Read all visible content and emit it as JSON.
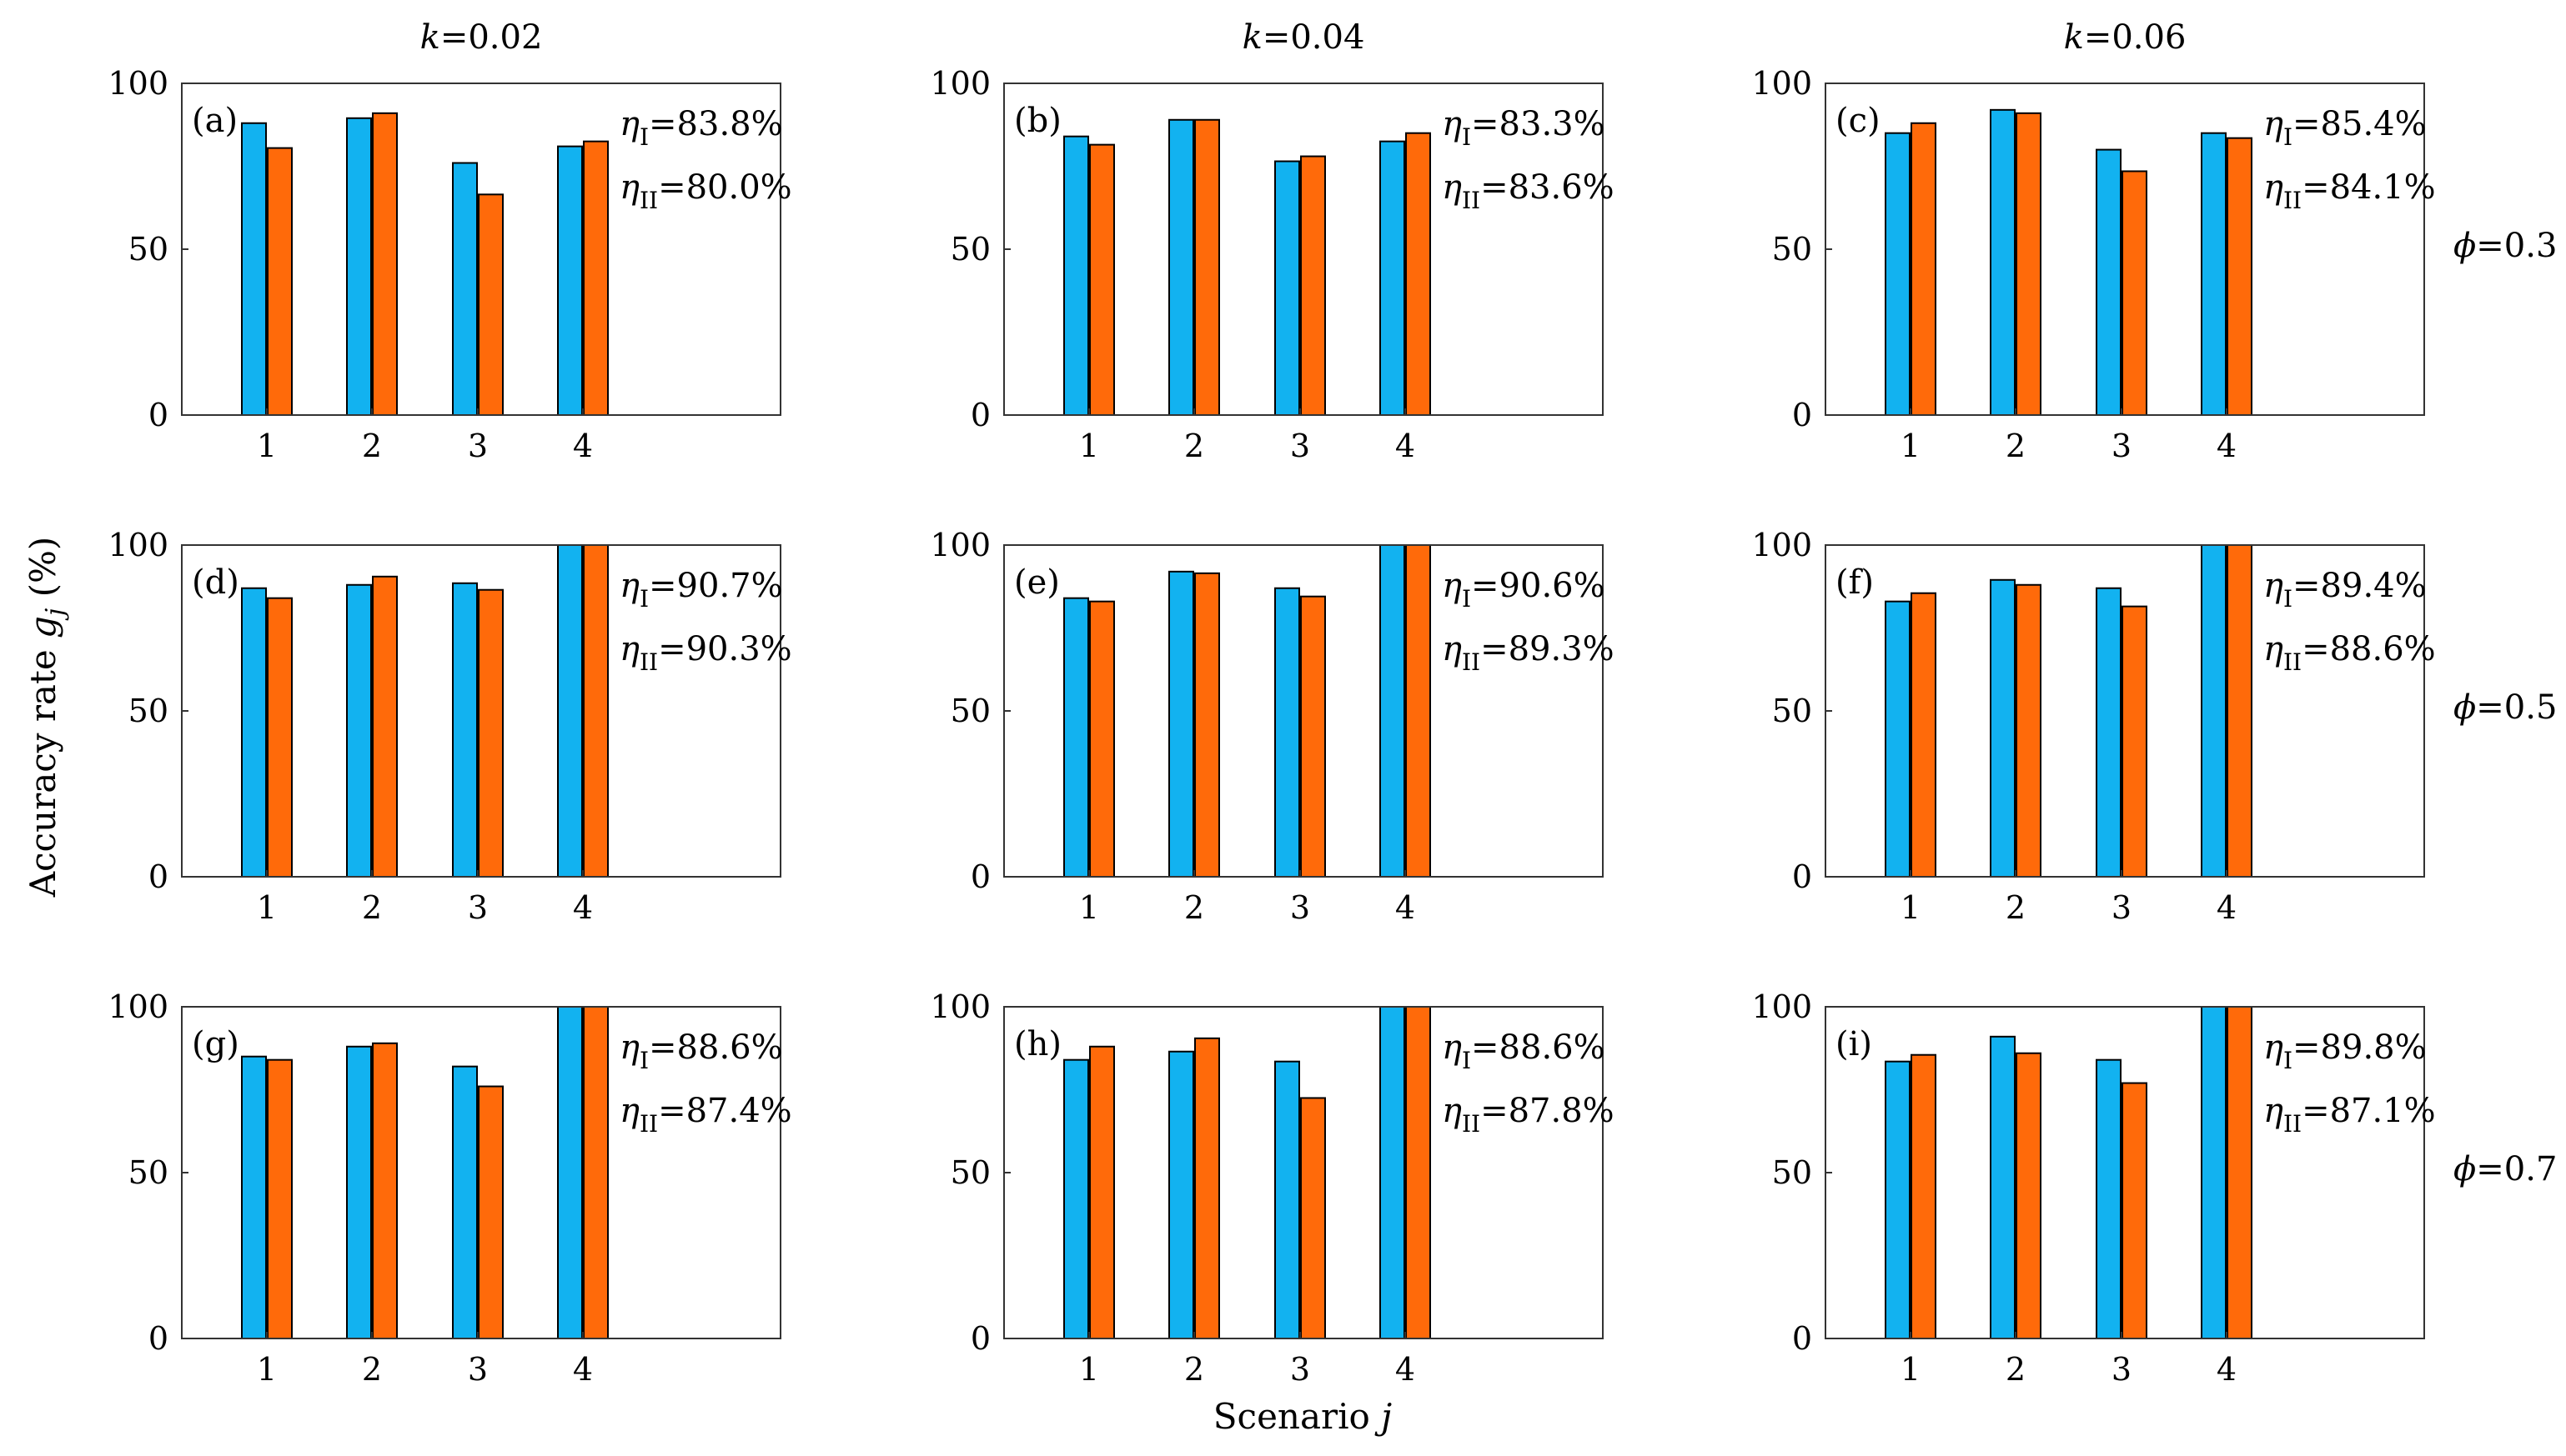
{
  "figure": {
    "column_headers": [
      "k=0.02",
      "k=0.04",
      "k=0.06"
    ],
    "row_labels": [
      "ϕ=0.3",
      "ϕ=0.5",
      "ϕ=0.7"
    ],
    "ylabel": "Accuracy rate g_j (%)",
    "xlabel": "Scenario j",
    "colors": {
      "series_I": "#12b2f0",
      "series_II": "#ff6a0a",
      "edge": "#000000",
      "axis": "#333333"
    }
  },
  "chart_data": [
    {
      "type": "bar",
      "panel": "(a)",
      "k": "k=0.02",
      "phi": "ϕ=0.3",
      "categories": [
        "1",
        "2",
        "3",
        "4"
      ],
      "ylim": [
        0,
        100
      ],
      "yticks": [
        0,
        50,
        100
      ],
      "series": [
        {
          "name": "I",
          "values": [
            88,
            89.5,
            76,
            81
          ]
        },
        {
          "name": "II",
          "values": [
            80.5,
            91,
            66.5,
            82.5
          ]
        }
      ],
      "annotations": [
        {
          "sub": "I",
          "text": "=83.8%"
        },
        {
          "sub": "II",
          "text": "=80.0%"
        }
      ]
    },
    {
      "type": "bar",
      "panel": "(b)",
      "k": "k=0.04",
      "phi": "ϕ=0.3",
      "categories": [
        "1",
        "2",
        "3",
        "4"
      ],
      "ylim": [
        0,
        100
      ],
      "yticks": [
        0,
        50,
        100
      ],
      "series": [
        {
          "name": "I",
          "values": [
            84,
            89,
            76.5,
            82.5
          ]
        },
        {
          "name": "II",
          "values": [
            81.5,
            89,
            78,
            85
          ]
        }
      ],
      "annotations": [
        {
          "sub": "I",
          "text": "=83.3%"
        },
        {
          "sub": "II",
          "text": "=83.6%"
        }
      ]
    },
    {
      "type": "bar",
      "panel": "(c)",
      "k": "k=0.06",
      "phi": "ϕ=0.3",
      "categories": [
        "1",
        "2",
        "3",
        "4"
      ],
      "ylim": [
        0,
        100
      ],
      "yticks": [
        0,
        50,
        100
      ],
      "series": [
        {
          "name": "I",
          "values": [
            85,
            92,
            80,
            85
          ]
        },
        {
          "name": "II",
          "values": [
            88,
            91,
            73.5,
            83.5
          ]
        }
      ],
      "annotations": [
        {
          "sub": "I",
          "text": "=85.4%"
        },
        {
          "sub": "II",
          "text": "=84.1%"
        }
      ]
    },
    {
      "type": "bar",
      "panel": "(d)",
      "k": "k=0.02",
      "phi": "ϕ=0.5",
      "categories": [
        "1",
        "2",
        "3",
        "4"
      ],
      "ylim": [
        0,
        100
      ],
      "yticks": [
        0,
        50,
        100
      ],
      "series": [
        {
          "name": "I",
          "values": [
            87,
            88,
            88.5,
            100
          ]
        },
        {
          "name": "II",
          "values": [
            84,
            90.5,
            86.5,
            100
          ]
        }
      ],
      "annotations": [
        {
          "sub": "I",
          "text": "=90.7%"
        },
        {
          "sub": "II",
          "text": "=90.3%"
        }
      ]
    },
    {
      "type": "bar",
      "panel": "(e)",
      "k": "k=0.04",
      "phi": "ϕ=0.5",
      "categories": [
        "1",
        "2",
        "3",
        "4"
      ],
      "ylim": [
        0,
        100
      ],
      "yticks": [
        0,
        50,
        100
      ],
      "series": [
        {
          "name": "I",
          "values": [
            84,
            92,
            87,
            100
          ]
        },
        {
          "name": "II",
          "values": [
            83,
            91.5,
            84.5,
            100
          ]
        }
      ],
      "annotations": [
        {
          "sub": "I",
          "text": "=90.6%"
        },
        {
          "sub": "II",
          "text": "=89.3%"
        }
      ]
    },
    {
      "type": "bar",
      "panel": "(f)",
      "k": "k=0.06",
      "phi": "ϕ=0.5",
      "categories": [
        "1",
        "2",
        "3",
        "4"
      ],
      "ylim": [
        0,
        100
      ],
      "yticks": [
        0,
        50,
        100
      ],
      "series": [
        {
          "name": "I",
          "values": [
            83,
            89.5,
            87,
            100
          ]
        },
        {
          "name": "II",
          "values": [
            85.5,
            88,
            81.5,
            100
          ]
        }
      ],
      "annotations": [
        {
          "sub": "I",
          "text": "=89.4%"
        },
        {
          "sub": "II",
          "text": "=88.6%"
        }
      ]
    },
    {
      "type": "bar",
      "panel": "(g)",
      "k": "k=0.02",
      "phi": "ϕ=0.7",
      "categories": [
        "1",
        "2",
        "3",
        "4"
      ],
      "ylim": [
        0,
        100
      ],
      "yticks": [
        0,
        50,
        100
      ],
      "series": [
        {
          "name": "I",
          "values": [
            85,
            88,
            82,
            100
          ]
        },
        {
          "name": "II",
          "values": [
            84,
            89,
            76,
            100
          ]
        }
      ],
      "annotations": [
        {
          "sub": "I",
          "text": "=88.6%"
        },
        {
          "sub": "II",
          "text": "=87.4%"
        }
      ]
    },
    {
      "type": "bar",
      "panel": "(h)",
      "k": "k=0.04",
      "phi": "ϕ=0.7",
      "categories": [
        "1",
        "2",
        "3",
        "4"
      ],
      "ylim": [
        0,
        100
      ],
      "yticks": [
        0,
        50,
        100
      ],
      "series": [
        {
          "name": "I",
          "values": [
            84,
            86.5,
            83.5,
            100
          ]
        },
        {
          "name": "II",
          "values": [
            88,
            90.5,
            72.5,
            100
          ]
        }
      ],
      "annotations": [
        {
          "sub": "I",
          "text": "=88.6%"
        },
        {
          "sub": "II",
          "text": "=87.8%"
        }
      ]
    },
    {
      "type": "bar",
      "panel": "(i)",
      "k": "k=0.06",
      "phi": "ϕ=0.7",
      "categories": [
        "1",
        "2",
        "3",
        "4"
      ],
      "ylim": [
        0,
        100
      ],
      "yticks": [
        0,
        50,
        100
      ],
      "series": [
        {
          "name": "I",
          "values": [
            83.5,
            91,
            84,
            100
          ]
        },
        {
          "name": "II",
          "values": [
            85.5,
            86,
            77,
            100
          ]
        }
      ],
      "annotations": [
        {
          "sub": "I",
          "text": "=89.8%"
        },
        {
          "sub": "II",
          "text": "=87.1%"
        }
      ]
    }
  ]
}
